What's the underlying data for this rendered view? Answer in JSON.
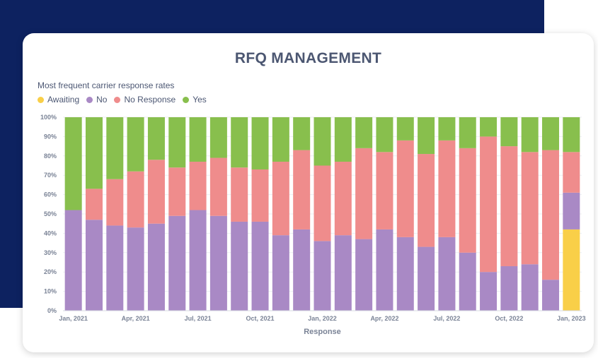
{
  "chart_data": {
    "type": "bar",
    "stacked": true,
    "normalized": true,
    "title": "RFQ MANAGEMENT",
    "subtitle": "Most frequent carrier response rates",
    "xlabel": "Response",
    "ylabel": "",
    "ylim": [
      0,
      100
    ],
    "grid": true,
    "legend_position": "top-left",
    "y_ticks": [
      "0%",
      "10%",
      "20%",
      "30%",
      "40%",
      "50%",
      "60%",
      "70%",
      "80%",
      "90%",
      "100%"
    ],
    "x_tick_labels": [
      {
        "index": 0,
        "label": "Jan, 2021"
      },
      {
        "index": 3,
        "label": "Apr, 2021"
      },
      {
        "index": 6,
        "label": "Jul, 2021"
      },
      {
        "index": 9,
        "label": "Oct, 2021"
      },
      {
        "index": 12,
        "label": "Jan, 2022"
      },
      {
        "index": 15,
        "label": "Apr, 2022"
      },
      {
        "index": 18,
        "label": "Jul, 2022"
      },
      {
        "index": 21,
        "label": "Oct, 2022"
      },
      {
        "index": 24,
        "label": "Jan, 2023"
      }
    ],
    "categories": [
      "Jan 2021",
      "Feb 2021",
      "Mar 2021",
      "Apr 2021",
      "May 2021",
      "Jun 2021",
      "Jul 2021",
      "Aug 2021",
      "Sep 2021",
      "Oct 2021",
      "Nov 2021",
      "Dec 2021",
      "Jan 2022",
      "Feb 2022",
      "Mar 2022",
      "Apr 2022",
      "May 2022",
      "Jun 2022",
      "Jul 2022",
      "Aug 2022",
      "Sep 2022",
      "Oct 2022",
      "Nov 2022",
      "Dec 2022",
      "Jan 2023"
    ],
    "series": [
      {
        "name": "Awaiting",
        "color": "#f9cf48",
        "values": [
          0,
          0,
          0,
          0,
          0,
          0,
          0,
          0,
          0,
          0,
          0,
          0,
          0,
          0,
          0,
          0,
          0,
          0,
          0,
          0,
          0,
          0,
          0,
          0,
          42
        ]
      },
      {
        "name": "No",
        "color": "#a989c5",
        "values": [
          52,
          47,
          44,
          43,
          45,
          49,
          52,
          49,
          46,
          46,
          39,
          42,
          36,
          39,
          37,
          42,
          38,
          33,
          38,
          30,
          20,
          23,
          24,
          16,
          19
        ]
      },
      {
        "name": "No Response",
        "color": "#ef8c8c",
        "values": [
          0,
          16,
          24,
          29,
          33,
          25,
          25,
          30,
          28,
          27,
          38,
          41,
          39,
          38,
          47,
          40,
          50,
          48,
          50,
          54,
          70,
          62,
          58,
          67,
          21
        ]
      },
      {
        "name": "Yes",
        "color": "#88bf4d",
        "values": [
          48,
          37,
          32,
          28,
          22,
          26,
          23,
          21,
          26,
          27,
          23,
          17,
          25,
          23,
          16,
          18,
          12,
          19,
          12,
          16,
          10,
          15,
          18,
          17,
          18
        ]
      }
    ]
  }
}
